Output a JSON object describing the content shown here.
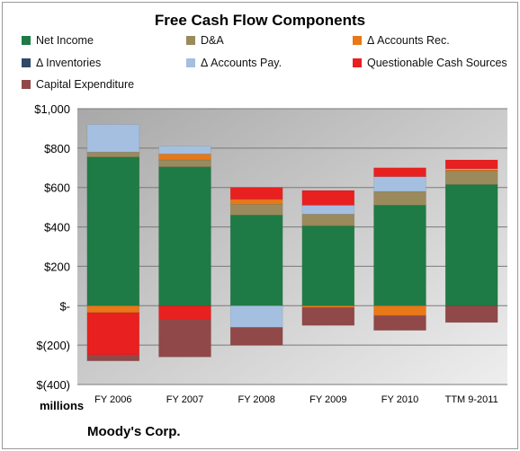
{
  "chart_data": {
    "type": "bar",
    "stacked": true,
    "title": "Free Cash Flow Components",
    "unit_label": "millions",
    "categories": [
      "FY 2006",
      "FY 2007",
      "FY 2008",
      "FY 2009",
      "FY 2010",
      "TTM 9-2011"
    ],
    "y_ticks": [
      "$1,000",
      "$800",
      "$600",
      "$400",
      "$200",
      "$-",
      "$(200)",
      "$(400)"
    ],
    "y_tick_values": [
      1000,
      800,
      600,
      400,
      200,
      0,
      -200,
      -400
    ],
    "ylim": [
      -400,
      1000
    ],
    "grid": true,
    "legend_position": "top",
    "series": [
      {
        "name": "Net Income",
        "color": "#1e7b45",
        "values": [
          755,
          705,
          460,
          405,
          510,
          615
        ]
      },
      {
        "name": "D&A",
        "color": "#9a8a5c",
        "values": [
          25,
          35,
          55,
          60,
          70,
          70
        ]
      },
      {
        "name": "Δ Accounts Rec.",
        "color": "#e87818",
        "values": [
          -35,
          30,
          25,
          -10,
          -50,
          5
        ]
      },
      {
        "name": "Δ Inventories",
        "color": "#2e4a66",
        "values": [
          0,
          0,
          0,
          0,
          0,
          0
        ]
      },
      {
        "name": "Δ Accounts Pay.",
        "color": "#a4bfe0",
        "values": [
          140,
          40,
          -110,
          45,
          75,
          5
        ]
      },
      {
        "name": "Questionable Cash Sources",
        "color": "#e82020",
        "values": [
          -215,
          -70,
          60,
          75,
          45,
          45
        ]
      },
      {
        "name": "Capital Expenditure",
        "color": "#904848",
        "values": [
          -30,
          -190,
          -90,
          -90,
          -75,
          -85
        ]
      }
    ]
  },
  "footer": {
    "company": "Moody's Corp."
  }
}
